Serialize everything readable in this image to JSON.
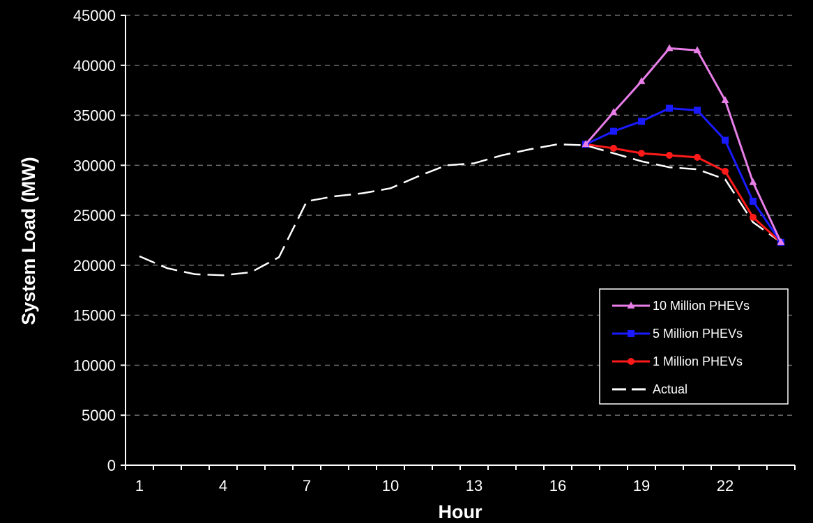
{
  "chart_data": {
    "type": "line",
    "xlabel": "Hour",
    "ylabel": "System Load (MW)",
    "xlim": [
      1,
      24
    ],
    "ylim": [
      0,
      45000
    ],
    "x_ticks": [
      1,
      4,
      7,
      10,
      13,
      16,
      19,
      22
    ],
    "y_ticks": [
      0,
      5000,
      10000,
      15000,
      20000,
      25000,
      30000,
      35000,
      40000,
      45000
    ],
    "grid": "horizontal dashed",
    "legend_position": "bottom-right",
    "background": "#000000",
    "series": [
      {
        "name": "10 Million PHEVs",
        "color": "#e87ee8",
        "marker": "triangle",
        "dash": false,
        "x": [
          17,
          18,
          19,
          20,
          21,
          22,
          23,
          24
        ],
        "y": [
          32100,
          35300,
          38400,
          41700,
          41500,
          36500,
          28300,
          22300
        ]
      },
      {
        "name": "5 Million PHEVs",
        "color": "#1a1aff",
        "marker": "square",
        "dash": false,
        "x": [
          17,
          18,
          19,
          20,
          21,
          22,
          23,
          24
        ],
        "y": [
          32100,
          33400,
          34400,
          35700,
          35500,
          32500,
          26400,
          22300
        ]
      },
      {
        "name": "1 Million PHEVs",
        "color": "#ff1a1a",
        "marker": "circle",
        "dash": false,
        "x": [
          17,
          18,
          19,
          20,
          21,
          22,
          23,
          24
        ],
        "y": [
          32100,
          31700,
          31200,
          31000,
          30800,
          29400,
          24800,
          22300
        ]
      },
      {
        "name": "Actual",
        "color": "#ffffff",
        "marker": "none",
        "dash": true,
        "x": [
          1,
          2,
          3,
          4,
          5,
          6,
          7,
          8,
          9,
          10,
          11,
          12,
          13,
          14,
          15,
          16,
          17,
          18,
          19,
          20,
          21,
          22,
          23,
          24
        ],
        "y": [
          20900,
          19700,
          19100,
          19000,
          19300,
          20800,
          26400,
          26900,
          27200,
          27700,
          28900,
          30000,
          30200,
          31000,
          31600,
          32100,
          32000,
          31200,
          30400,
          29800,
          29600,
          28600,
          24300,
          22300
        ]
      }
    ]
  }
}
